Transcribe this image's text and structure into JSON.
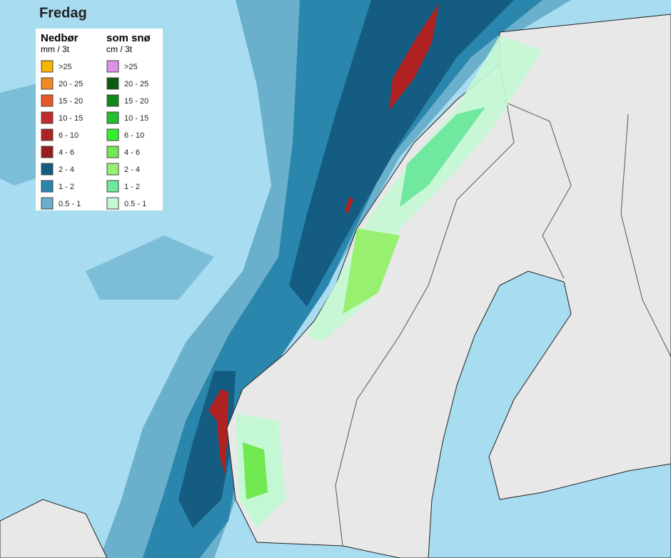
{
  "title": "Fredag",
  "legend": {
    "rain": {
      "title": "Nedbør",
      "unit": "mm / 3t",
      "items": [
        {
          "label": ">25",
          "color": "#f7b500"
        },
        {
          "label": "20 - 25",
          "color": "#f08a28"
        },
        {
          "label": "15 - 20",
          "color": "#e8582a"
        },
        {
          "label": "10 - 15",
          "color": "#c42a2a"
        },
        {
          "label": "6 - 10",
          "color": "#b02222"
        },
        {
          "label": "4 - 6",
          "color": "#9a1c1c"
        },
        {
          "label": "2 - 4",
          "color": "#145c82"
        },
        {
          "label": "1 - 2",
          "color": "#2a86ad"
        },
        {
          "label": "0.5 - 1",
          "color": "#6ab0cc"
        }
      ]
    },
    "snow": {
      "title": "som snø",
      "unit": "cm / 3t",
      "items": [
        {
          "label": ">25",
          "color": "#e090e8"
        },
        {
          "label": "20 - 25",
          "color": "#0a5a10"
        },
        {
          "label": "15 - 20",
          "color": "#10881a"
        },
        {
          "label": "10 - 15",
          "color": "#20c030"
        },
        {
          "label": "6 - 10",
          "color": "#30f030"
        },
        {
          "label": "4 - 6",
          "color": "#70e850"
        },
        {
          "label": "2 - 4",
          "color": "#98f070"
        },
        {
          "label": "1 - 2",
          "color": "#70e8a0"
        },
        {
          "label": "0.5 - 1",
          "color": "#c4f8d4"
        }
      ]
    }
  }
}
